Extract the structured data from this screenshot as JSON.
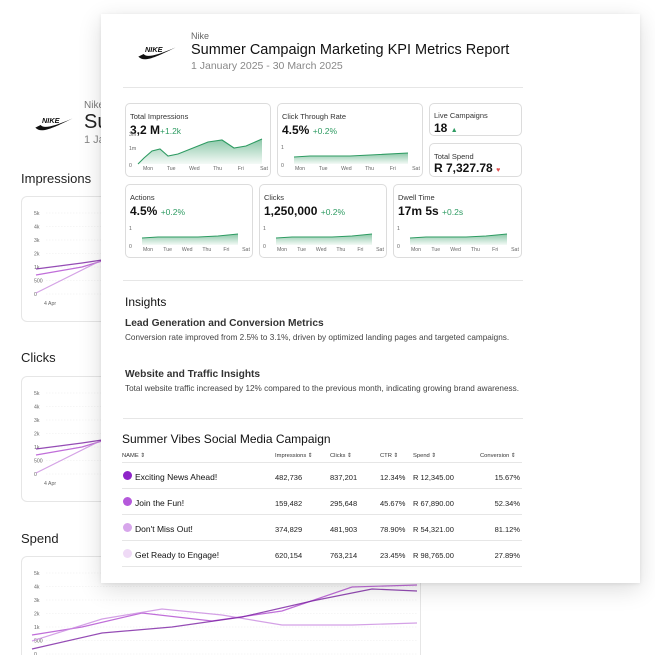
{
  "brand": "Nike",
  "report": {
    "title": "Summer Campaign Marketing KPI Metrics Report",
    "date_range": "1 January 2025 - 30 March 2025"
  },
  "background_sheet": {
    "brand": "Nike",
    "title_fragment": "Su",
    "date_fragment": "1 Ja",
    "sections": [
      "Impressions",
      "Clicks",
      "Spend"
    ],
    "y_ticks": [
      "5k",
      "4k",
      "3k",
      "2k",
      "1k",
      "500",
      "0"
    ],
    "x_tick": "4 Apr",
    "line_colors": [
      "#b04ad0",
      "#c98ae0",
      "#7b1fa2"
    ]
  },
  "kpis": {
    "impressions": {
      "label": "Total Impressions",
      "value": "3,2 M",
      "delta": "+1.2k",
      "y_ticks": [
        "3m",
        "1m",
        "0"
      ]
    },
    "ctr": {
      "label": "Click Through Rate",
      "value": "4.5%",
      "delta": "+0.2%",
      "y_ticks": [
        "1",
        "0"
      ]
    },
    "live": {
      "label": "Live Campaigns",
      "value": "18"
    },
    "spend": {
      "label": "Total Spend",
      "value": "R 7,327.78"
    },
    "actions": {
      "label": "Actions",
      "value": "4.5%",
      "delta": "+0.2%",
      "y_ticks": [
        "1",
        "0"
      ]
    },
    "clicks": {
      "label": "Clicks",
      "value": "1,250,000",
      "delta": "+0.2%",
      "y_ticks": [
        "1",
        "0"
      ]
    },
    "dwell": {
      "label": "Dwell Time",
      "value": "17m 5s",
      "delta": "+0.2s",
      "y_ticks": [
        "1",
        "0"
      ]
    }
  },
  "days": [
    "Mon",
    "Tue",
    "Wed",
    "Thu",
    "Fri",
    "Sat"
  ],
  "accent_green": "#2e9b62",
  "insights": {
    "title": "Insights",
    "items": [
      {
        "heading": "Lead Generation and Conversion Metrics",
        "text": "Conversion rate improved from 2.5% to 3.1%, driven by optimized landing pages and targeted campaigns."
      },
      {
        "heading": "Website and Traffic Insights",
        "text": "Total website traffic increased by 12% compared to the previous month, indicating growing brand awareness."
      }
    ]
  },
  "table": {
    "title": "Summer Vibes Social Media Campaign",
    "columns": [
      "NAME",
      "Impressions",
      "Clicks",
      "CTR",
      "Spend",
      "Conversion"
    ],
    "sort_icon": "⇕",
    "rows": [
      {
        "name": "Exciting News Ahead!",
        "impressions": "482,736",
        "clicks": "837,201",
        "ctr": "12.34%",
        "spend": "R 12,345.00",
        "conversion": "15.67%",
        "color": "#8e24c8"
      },
      {
        "name": "Join the Fun!",
        "impressions": "159,482",
        "clicks": "295,648",
        "ctr": "45.67%",
        "spend": "R 67,890.00",
        "conversion": "52.34%",
        "color": "#b559db"
      },
      {
        "name": "Don't Miss Out!",
        "impressions": "374,829",
        "clicks": "481,903",
        "ctr": "78.90%",
        "spend": "R 54,321.00",
        "conversion": "81.12%",
        "color": "#d7a6eb"
      },
      {
        "name": "Get Ready to Engage!",
        "impressions": "620,154",
        "clicks": "763,214",
        "ctr": "23.45%",
        "spend": "R 98,765.00",
        "conversion": "27.89%",
        "color": "#efdaf6"
      }
    ]
  }
}
